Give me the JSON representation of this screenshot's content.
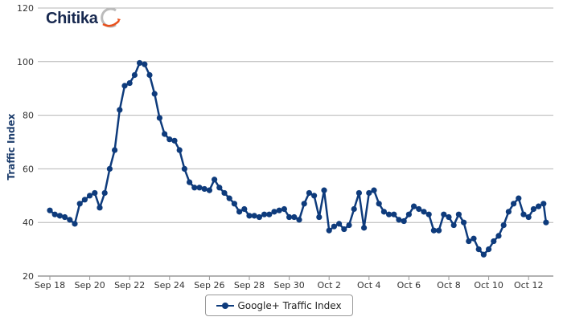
{
  "logo": {
    "text": "Chitika"
  },
  "colors": {
    "series": "#0e3b7c",
    "grid": "#b5b5b5",
    "logo_swoosh": "#e8501c"
  },
  "chart_data": {
    "type": "line",
    "title": "",
    "xlabel": "",
    "ylabel": "Traffic Index",
    "ylim": [
      20,
      120
    ],
    "yticks": [
      "20",
      "40",
      "60",
      "80",
      "100",
      "120"
    ],
    "xticks": [
      "Sep 18",
      "Sep 20",
      "Sep 22",
      "Sep 24",
      "Sep 26",
      "Sep 28",
      "Sep 30",
      "Oct 2",
      "Oct 4",
      "Oct 6",
      "Oct 8",
      "Oct 10",
      "Oct 12"
    ],
    "grid": true,
    "legend_position": "bottom",
    "series": [
      {
        "name": "Google+ Traffic Index",
        "marker": "circle",
        "x": [
          "Sep 18 00:00",
          "Sep 18 06:00",
          "Sep 18 12:00",
          "Sep 18 18:00",
          "Sep 19 00:00",
          "Sep 19 06:00",
          "Sep 19 12:00",
          "Sep 19 18:00",
          "Sep 20 00:00",
          "Sep 20 06:00",
          "Sep 20 12:00",
          "Sep 20 18:00",
          "Sep 21 00:00",
          "Sep 21 06:00",
          "Sep 21 12:00",
          "Sep 21 18:00",
          "Sep 22 00:00",
          "Sep 22 06:00",
          "Sep 22 12:00",
          "Sep 22 18:00",
          "Sep 23 00:00",
          "Sep 23 06:00",
          "Sep 23 12:00",
          "Sep 23 18:00",
          "Sep 24 00:00",
          "Sep 24 06:00",
          "Sep 24 12:00",
          "Sep 24 18:00",
          "Sep 25 00:00",
          "Sep 25 06:00",
          "Sep 25 12:00",
          "Sep 25 18:00",
          "Sep 26 00:00",
          "Sep 26 06:00",
          "Sep 26 12:00",
          "Sep 26 18:00",
          "Sep 27 00:00",
          "Sep 27 06:00",
          "Sep 27 12:00",
          "Sep 27 18:00",
          "Sep 28 00:00",
          "Sep 28 06:00",
          "Sep 28 12:00",
          "Sep 28 18:00",
          "Sep 29 00:00",
          "Sep 29 06:00",
          "Sep 29 12:00",
          "Sep 29 18:00",
          "Sep 30 00:00",
          "Sep 30 06:00",
          "Sep 30 12:00",
          "Sep 30 18:00",
          "Oct 1 00:00",
          "Oct 1 06:00",
          "Oct 1 12:00",
          "Oct 1 18:00",
          "Oct 2 00:00",
          "Oct 2 06:00",
          "Oct 2 12:00",
          "Oct 2 18:00",
          "Oct 3 00:00",
          "Oct 3 06:00",
          "Oct 3 12:00",
          "Oct 3 18:00",
          "Oct 4 00:00",
          "Oct 4 06:00",
          "Oct 4 12:00",
          "Oct 4 18:00",
          "Oct 5 00:00",
          "Oct 5 06:00",
          "Oct 5 12:00",
          "Oct 5 18:00",
          "Oct 6 00:00",
          "Oct 6 06:00",
          "Oct 6 12:00",
          "Oct 6 18:00",
          "Oct 7 00:00",
          "Oct 7 06:00",
          "Oct 7 12:00",
          "Oct 7 18:00",
          "Oct 8 00:00",
          "Oct 8 06:00",
          "Oct 8 12:00",
          "Oct 8 18:00",
          "Oct 9 00:00",
          "Oct 9 06:00",
          "Oct 9 12:00",
          "Oct 9 18:00",
          "Oct 10 00:00",
          "Oct 10 06:00",
          "Oct 10 12:00",
          "Oct 10 18:00",
          "Oct 11 00:00",
          "Oct 11 06:00",
          "Oct 11 12:00",
          "Oct 11 18:00",
          "Oct 12 00:00",
          "Oct 12 06:00",
          "Oct 12 12:00",
          "Oct 12 18:00",
          "Oct 12 21:00"
        ],
        "y": [
          44.5,
          43,
          42.5,
          42,
          41,
          39.5,
          47,
          48.5,
          50,
          51,
          45.5,
          51,
          60,
          67,
          82,
          91,
          92,
          95,
          99.5,
          99,
          95,
          88,
          79,
          73,
          71,
          70.5,
          67,
          60,
          55,
          53,
          53,
          52.5,
          52,
          56,
          53,
          51,
          49,
          47,
          44,
          45,
          42.5,
          42.5,
          42,
          43,
          43,
          44,
          44.5,
          45,
          42,
          42,
          41,
          47,
          51,
          50,
          42,
          52,
          37,
          38.5,
          39.5,
          37.5,
          39,
          45,
          51,
          38,
          51,
          52,
          47,
          44,
          43,
          43,
          41,
          40.5,
          43,
          46,
          45,
          44,
          43,
          37,
          37,
          43,
          42,
          39,
          43,
          40,
          33,
          34,
          30,
          28,
          30,
          33,
          35,
          39,
          44,
          47,
          49,
          43,
          42,
          45,
          46,
          47,
          40
        ]
      }
    ]
  }
}
